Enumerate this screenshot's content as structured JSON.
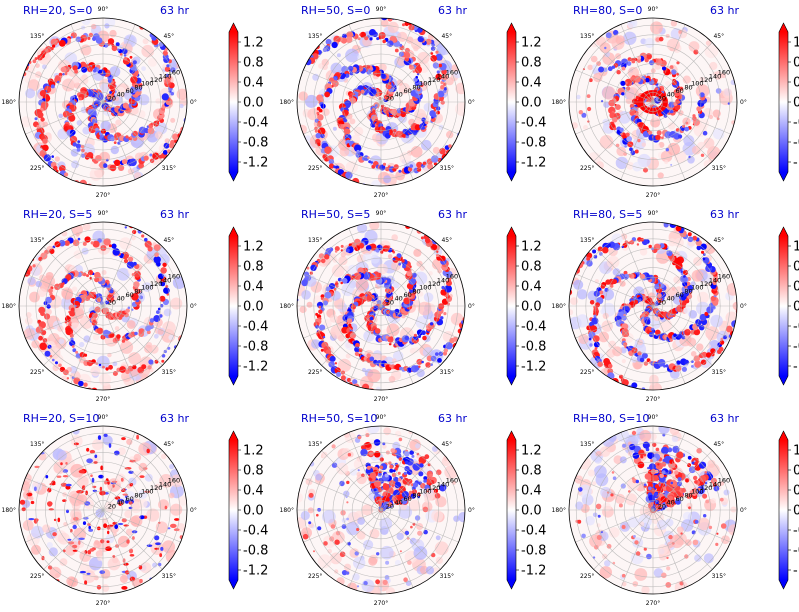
{
  "chart_data": {
    "type": "heatmap",
    "projection": "polar",
    "grid": true,
    "angle_ticks": [
      "0°",
      "45°",
      "90°",
      "135°",
      "180°",
      "225°",
      "270°",
      "315°"
    ],
    "radial_ticks": [
      "20",
      "40",
      "60",
      "80",
      "100",
      "120",
      "140",
      "160"
    ],
    "radial_max": 175,
    "colorbar": {
      "colormap": "bwr",
      "ticks": [
        "-1.2",
        "-0.8",
        "-0.4",
        "0.0",
        "0.4",
        "0.8",
        "1.2"
      ],
      "range": [
        -1.4,
        1.4
      ],
      "extend": "both",
      "colors": {
        "negative": "#0000ff",
        "zero": "#ffffff",
        "positive": "#ff0000"
      }
    },
    "panels": [
      {
        "title": "RH=20, S=0",
        "time": "63 hr",
        "rh": 20,
        "s": 0,
        "pattern": "spiral",
        "activity": 0.9,
        "pos_bias": 0.65
      },
      {
        "title": "RH=50, S=0",
        "time": "63 hr",
        "rh": 50,
        "s": 0,
        "pattern": "spiral",
        "activity": 1.0,
        "pos_bias": 0.62
      },
      {
        "title": "RH=80, S=0",
        "time": "63 hr",
        "rh": 80,
        "s": 0,
        "pattern": "core",
        "activity": 0.6,
        "pos_bias": 0.7
      },
      {
        "title": "RH=20, S=5",
        "time": "63 hr",
        "rh": 20,
        "s": 5,
        "pattern": "spiral",
        "activity": 0.6,
        "pos_bias": 0.68
      },
      {
        "title": "RH=50, S=5",
        "time": "63 hr",
        "rh": 50,
        "s": 5,
        "pattern": "spiral",
        "activity": 0.95,
        "pos_bias": 0.62
      },
      {
        "title": "RH=80, S=5",
        "time": "63 hr",
        "rh": 80,
        "s": 5,
        "pattern": "spiral",
        "activity": 0.9,
        "pos_bias": 0.58
      },
      {
        "title": "RH=20, S=10",
        "time": "63 hr",
        "rh": 20,
        "s": 10,
        "pattern": "scatter",
        "activity": 0.5,
        "pos_bias": 0.75
      },
      {
        "title": "RH=50, S=10",
        "time": "63 hr",
        "rh": 50,
        "s": 10,
        "pattern": "sheared",
        "activity": 0.7,
        "pos_bias": 0.62
      },
      {
        "title": "RH=80, S=10",
        "time": "63 hr",
        "rh": 80,
        "s": 10,
        "pattern": "sheared",
        "activity": 0.85,
        "pos_bias": 0.62
      }
    ]
  }
}
